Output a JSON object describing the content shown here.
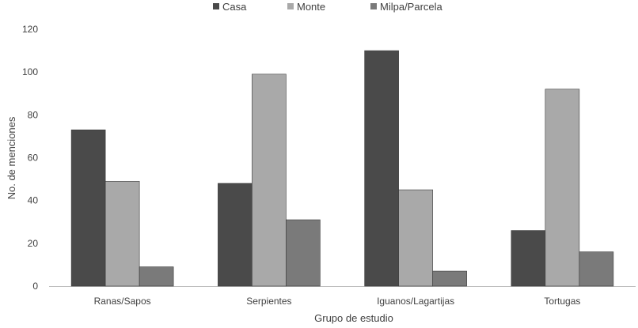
{
  "chart_data": {
    "type": "bar",
    "title": "",
    "xlabel": "Grupo de estudio",
    "ylabel": "No. de menciones",
    "categories": [
      "Ranas/Sapos",
      "Serpientes",
      "Iguanos/Lagartijas",
      "Tortugas"
    ],
    "series": [
      {
        "name": "Casa",
        "values": [
          73,
          48,
          110,
          26
        ],
        "color": "#4a4a4a"
      },
      {
        "name": "Monte",
        "values": [
          49,
          99,
          45,
          92
        ],
        "color": "#a9a9a9"
      },
      {
        "name": "Milpa/Parcela",
        "values": [
          9,
          31,
          7,
          16
        ],
        "color": "#7a7a7a"
      }
    ],
    "ylim": [
      0,
      120
    ],
    "yticks": [
      0,
      20,
      40,
      60,
      80,
      100,
      120
    ],
    "grid": false,
    "legend": "top-center"
  }
}
